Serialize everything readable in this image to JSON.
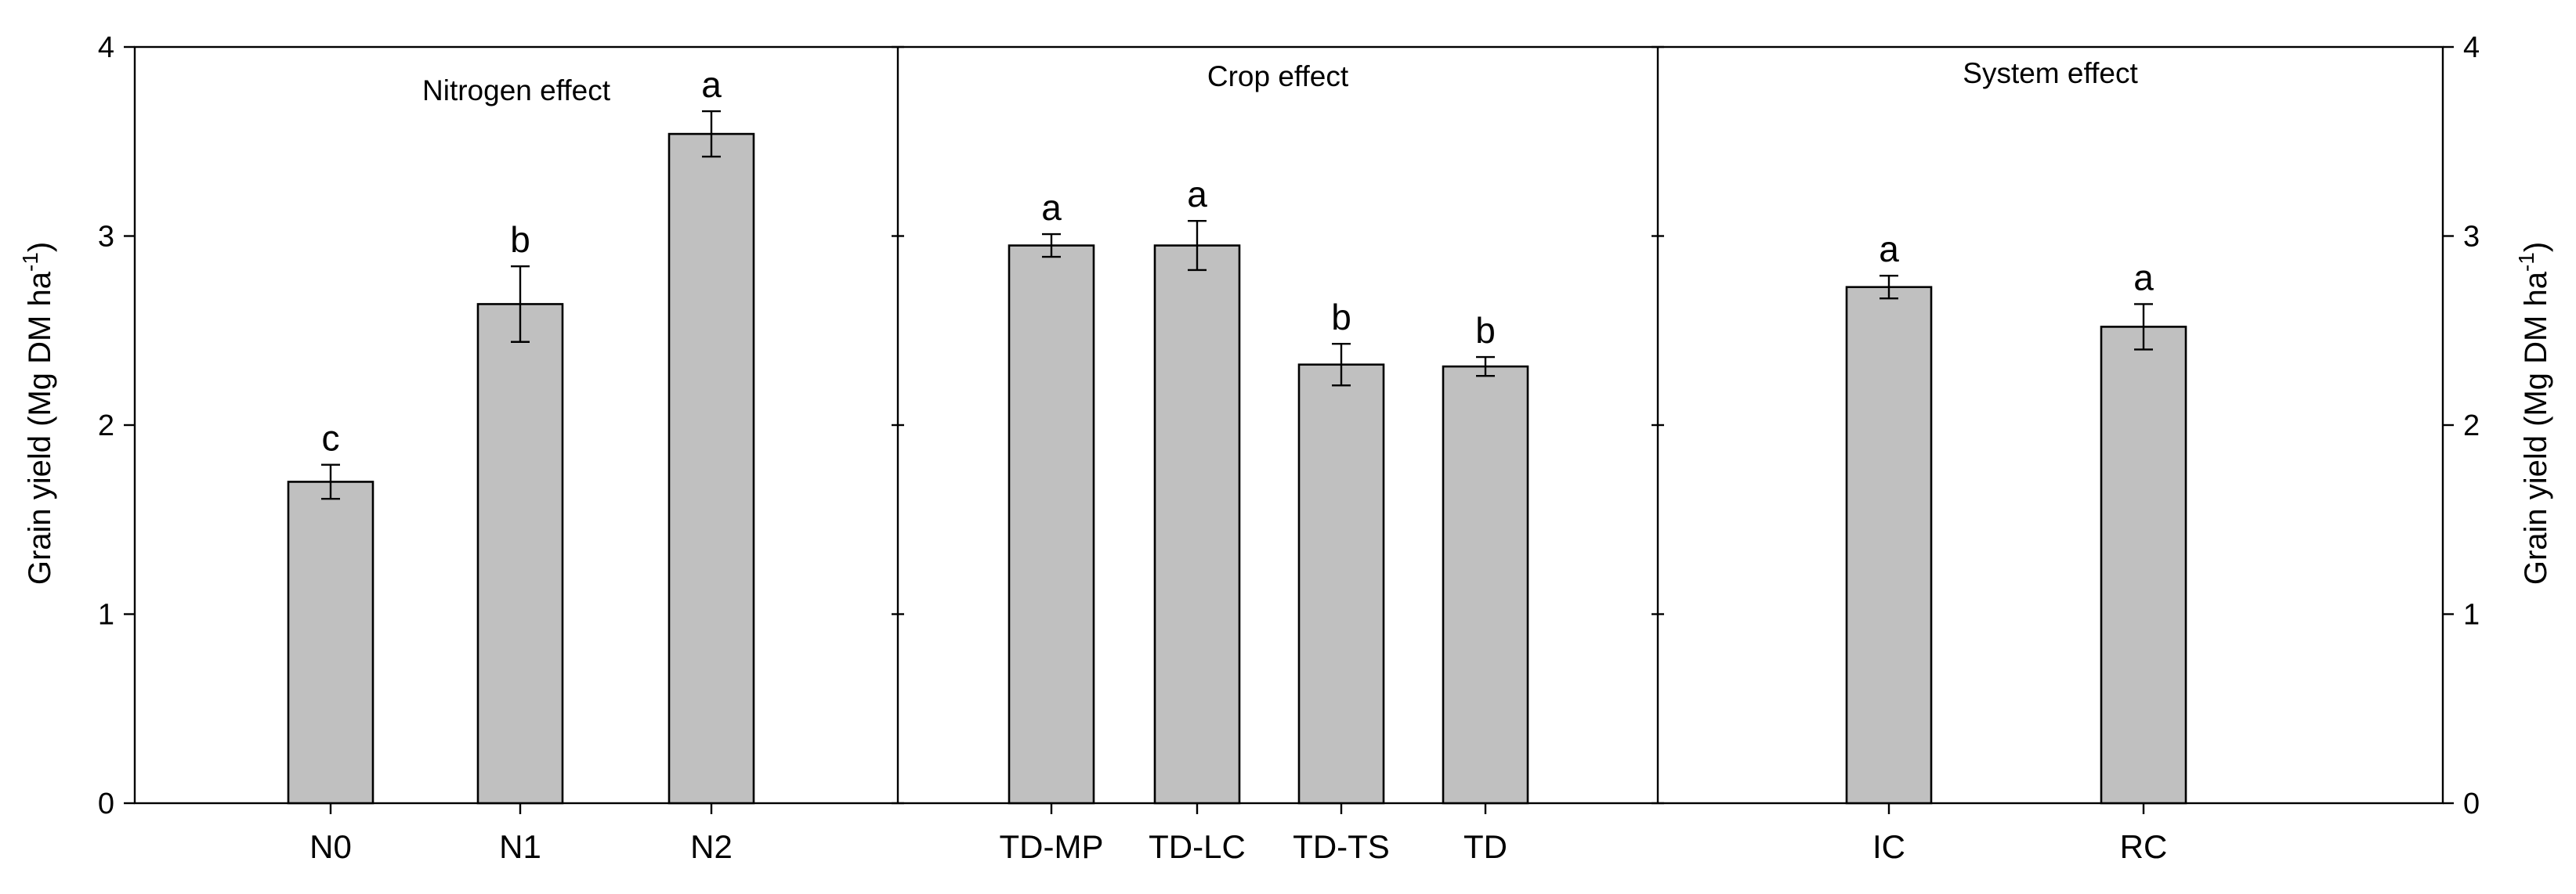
{
  "chart_data": {
    "type": "bar",
    "ylabel": "Grain yield (Mg DM ha",
    "ylabel_superscript": "-1",
    "ylabel_close": ")",
    "ylim": [
      0,
      4
    ],
    "yticks": [
      "0",
      "1",
      "2",
      "3",
      "4"
    ],
    "panels": [
      {
        "title": "Nitrogen effect",
        "categories": [
          "N0",
          "N1",
          "N2"
        ],
        "values": [
          1.7,
          2.64,
          3.54
        ],
        "errors": [
          0.09,
          0.2,
          0.12
        ],
        "letters": [
          "c",
          "b",
          "a"
        ]
      },
      {
        "title": "Crop effect",
        "categories": [
          "TD-MP",
          "TD-LC",
          "TD-TS",
          "TD"
        ],
        "values": [
          2.95,
          2.95,
          2.32,
          2.31
        ],
        "errors": [
          0.06,
          0.13,
          0.11,
          0.05
        ],
        "letters": [
          "a",
          "a",
          "b",
          "b"
        ]
      },
      {
        "title": "System effect",
        "categories": [
          "IC",
          "RC"
        ],
        "values": [
          2.73,
          2.52
        ],
        "errors": [
          0.06,
          0.12
        ],
        "letters": [
          "a",
          "a"
        ]
      }
    ]
  }
}
